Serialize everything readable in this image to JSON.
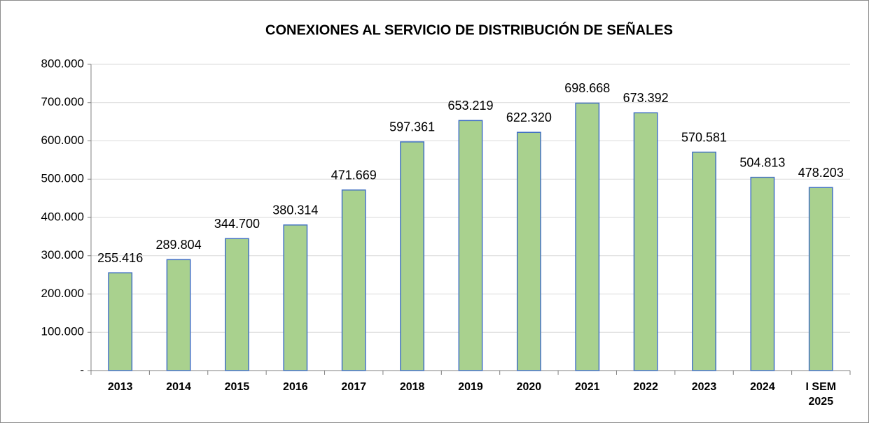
{
  "chart_data": {
    "type": "bar",
    "title": "CONEXIONES AL SERVICIO DE DISTRIBUCIÓN DE SEÑALES",
    "categories": [
      "2013",
      "2014",
      "2015",
      "2016",
      "2017",
      "2018",
      "2019",
      "2020",
      "2021",
      "2022",
      "2023",
      "2024",
      "I SEM\n2025"
    ],
    "values": [
      255416,
      289804,
      344700,
      380314,
      471669,
      597361,
      653219,
      622320,
      698668,
      673392,
      570581,
      504813,
      478203
    ],
    "value_labels": [
      "255.416",
      "289.804",
      "344.700",
      "380.314",
      "471.669",
      "597.361",
      "653.219",
      "622.320",
      "698.668",
      "673.392",
      "570.581",
      "504.813",
      "478.203"
    ],
    "color": "#a9d18e",
    "edge_color": "#4472c4",
    "ylim": [
      0,
      800000
    ],
    "yticks": [
      {
        "value": 0,
        "label": "-"
      },
      {
        "value": 100000,
        "label": "100.000"
      },
      {
        "value": 200000,
        "label": "200.000"
      },
      {
        "value": 300000,
        "label": "300.000"
      },
      {
        "value": 400000,
        "label": "400.000"
      },
      {
        "value": 500000,
        "label": "500.000"
      },
      {
        "value": 600000,
        "label": "600.000"
      },
      {
        "value": 700000,
        "label": "700.000"
      },
      {
        "value": 800000,
        "label": "800.000"
      }
    ],
    "grid": true
  }
}
